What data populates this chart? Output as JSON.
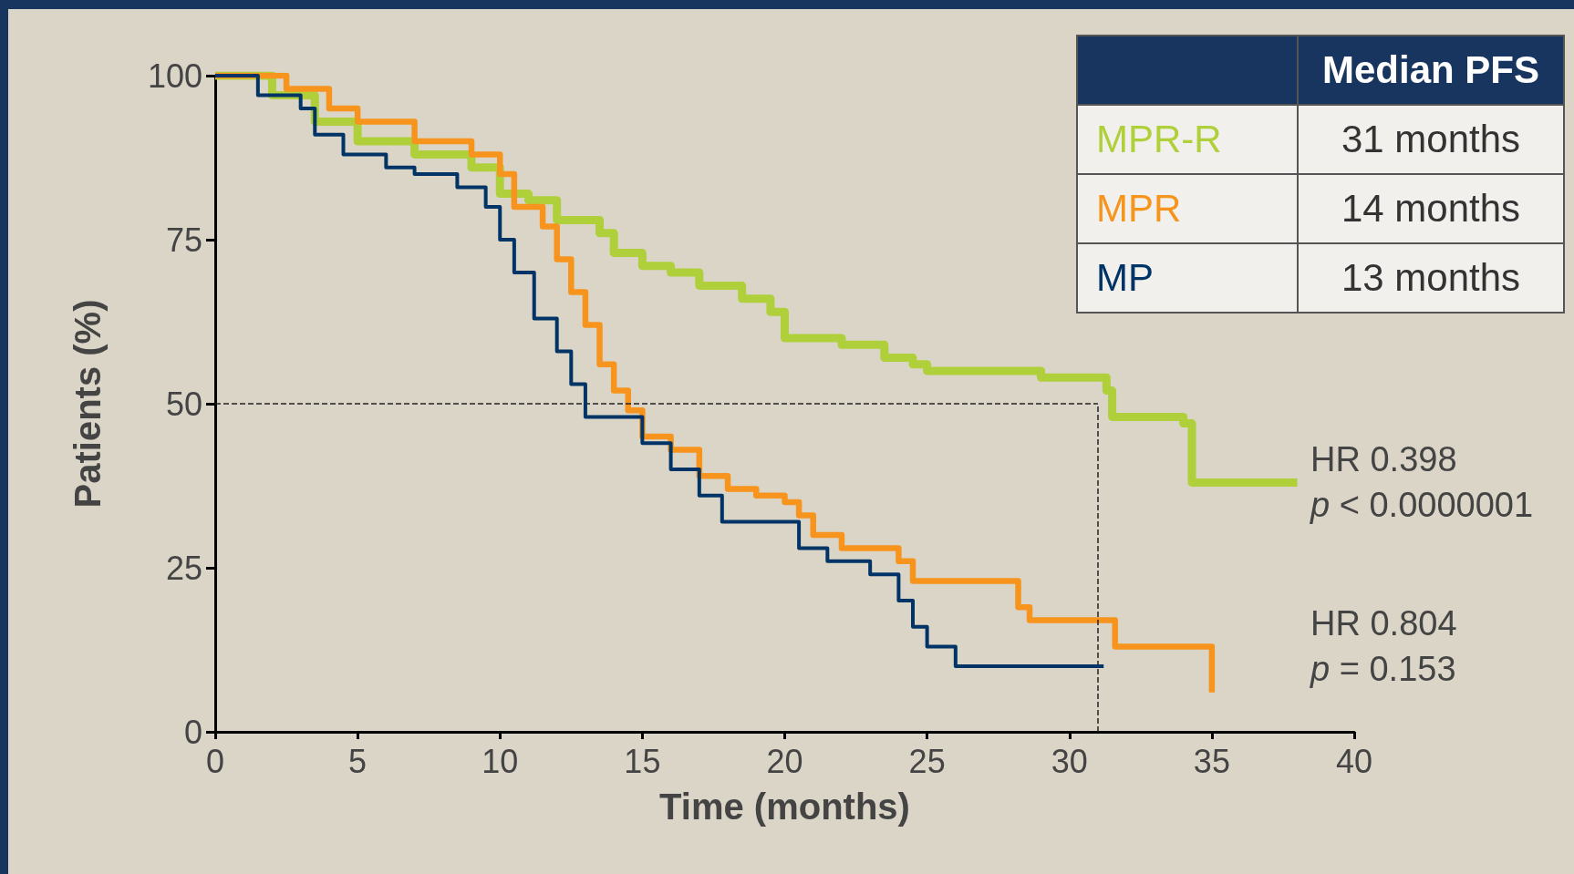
{
  "chart_data": {
    "type": "step",
    "xlabel": "Time (months)",
    "ylabel": "Patients (%)",
    "xlim": [
      0,
      40
    ],
    "xticks": [
      0,
      5,
      10,
      15,
      20,
      25,
      30,
      35,
      40
    ],
    "ylim": [
      0,
      100
    ],
    "yticks": [
      0,
      25,
      50,
      75,
      100
    ],
    "grid": false,
    "legend": "top right",
    "legend_title": "Median PFS",
    "series": [
      {
        "name": "MPR-R",
        "color": "#afd03b",
        "x": [
          0,
          2,
          3.5,
          5,
          7,
          9,
          10,
          11,
          12,
          13.5,
          14,
          15,
          16,
          17,
          18.5,
          19.5,
          20,
          22,
          23.5,
          24.5,
          25,
          29,
          31.3,
          31.5,
          34,
          34.3,
          38
        ],
        "values": [
          100,
          97,
          93,
          90,
          88,
          86,
          82,
          81,
          78,
          76,
          73,
          71,
          70,
          68,
          66,
          64,
          60,
          59,
          57,
          56,
          55,
          54,
          52,
          48,
          47,
          38,
          38
        ]
      },
      {
        "name": "MPR",
        "color": "#f7941d",
        "x": [
          0,
          2.5,
          4,
          5,
          7,
          9,
          10,
          10.5,
          11.5,
          12,
          12.5,
          13,
          13.5,
          14,
          14.5,
          15,
          16,
          17,
          18,
          19,
          20,
          20.5,
          21,
          22,
          24,
          24.5,
          28.2,
          28.6,
          31.6,
          35,
          35
        ],
        "values": [
          100,
          98,
          95,
          93,
          90,
          88,
          85,
          80,
          77,
          72,
          67,
          62,
          56,
          52,
          49,
          45,
          43,
          39,
          37,
          36,
          35,
          33,
          30,
          28,
          26,
          23,
          19,
          17,
          13,
          13,
          6
        ]
      },
      {
        "name": "MP",
        "color": "#003466",
        "x": [
          0,
          1.5,
          3,
          3.5,
          4.5,
          6,
          7,
          8.5,
          9.5,
          10,
          10.5,
          11.2,
          12,
          12.5,
          13,
          14.5,
          15,
          16,
          17,
          17.8,
          20,
          20.5,
          21.5,
          23,
          24,
          24.5,
          25,
          26,
          31.2
        ],
        "values": [
          100,
          97,
          95,
          91,
          88,
          86,
          85,
          83,
          80,
          75,
          70,
          63,
          58,
          53,
          48,
          48,
          44,
          40,
          36,
          32,
          32,
          28,
          26,
          24,
          20,
          16,
          13,
          10,
          10
        ]
      }
    ],
    "ref_lines": [
      {
        "axis": "y",
        "value": 50,
        "line_style": "dashed",
        "color": "#222222"
      },
      {
        "axis": "x",
        "value": 31,
        "line_style": "dashed",
        "color": "#222222"
      }
    ],
    "annotations": [
      "31 months",
      "14 months",
      "13 months",
      "HR 0.398",
      "p < 0.0000001",
      "HR 0.804",
      "p = 0.153"
    ]
  }
}
